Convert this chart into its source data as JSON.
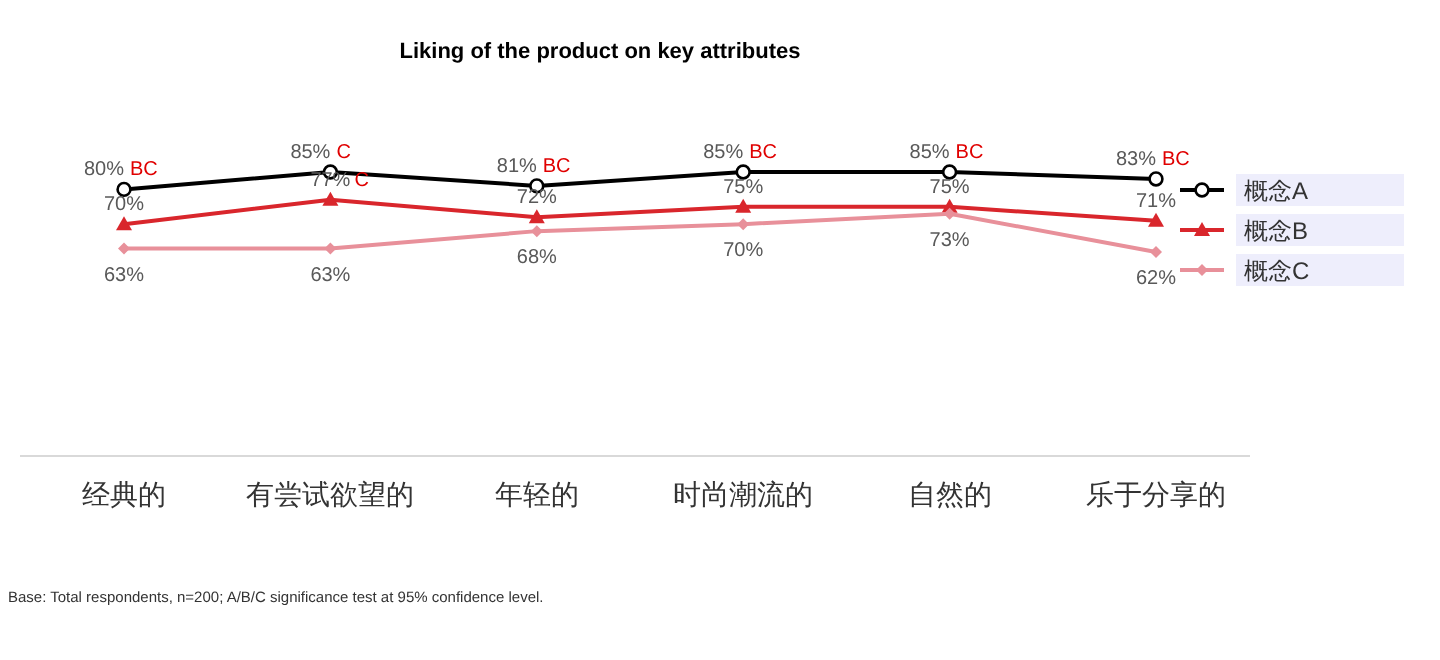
{
  "chart_data": {
    "type": "line",
    "title": "Liking of the product on key attributes",
    "categories": [
      "经典的",
      "有尝试欲望的",
      "年轻的",
      "时尚潮流的",
      "自然的",
      "乐于分享的"
    ],
    "series": [
      {
        "name": "概念A",
        "color": "#000000",
        "marker": "circle",
        "values": [
          80,
          85,
          81,
          85,
          85,
          83
        ],
        "value_labels": [
          "80%",
          "85%",
          "81%",
          "85%",
          "85%",
          "83%"
        ]
      },
      {
        "name": "概念B",
        "color": "#d9262c",
        "marker": "triangle",
        "values": [
          70,
          77,
          72,
          75,
          75,
          71
        ],
        "value_labels": [
          "70%",
          "77%",
          "72%",
          "75%",
          "75%",
          "71%"
        ]
      },
      {
        "name": "概念C",
        "color": "#e8909a",
        "marker": "diamond",
        "values": [
          63,
          63,
          68,
          70,
          73,
          62
        ],
        "value_labels": [
          "63%",
          "63%",
          "68%",
          "70%",
          "73%",
          "62%"
        ]
      }
    ],
    "annotations": [
      {
        "text": "BC",
        "x": "经典的",
        "y": 80
      },
      {
        "text": "C",
        "x": "有尝试欲望的",
        "y": 85
      },
      {
        "text": "BC",
        "x": "年轻的",
        "y": 81
      },
      {
        "text": "BC",
        "x": "时尚潮流的",
        "y": 85
      },
      {
        "text": "BC",
        "x": "自然的",
        "y": 85
      },
      {
        "text": "BC",
        "x": "乐于分享的",
        "y": 83
      },
      {
        "text": "C",
        "x": "有尝试欲望的",
        "y": 77
      },
      "Base: Total respondents, n=200; A/B/C significance test at 95% confidence level."
    ],
    "legend": "right",
    "grid": false,
    "line_style": "solid"
  }
}
